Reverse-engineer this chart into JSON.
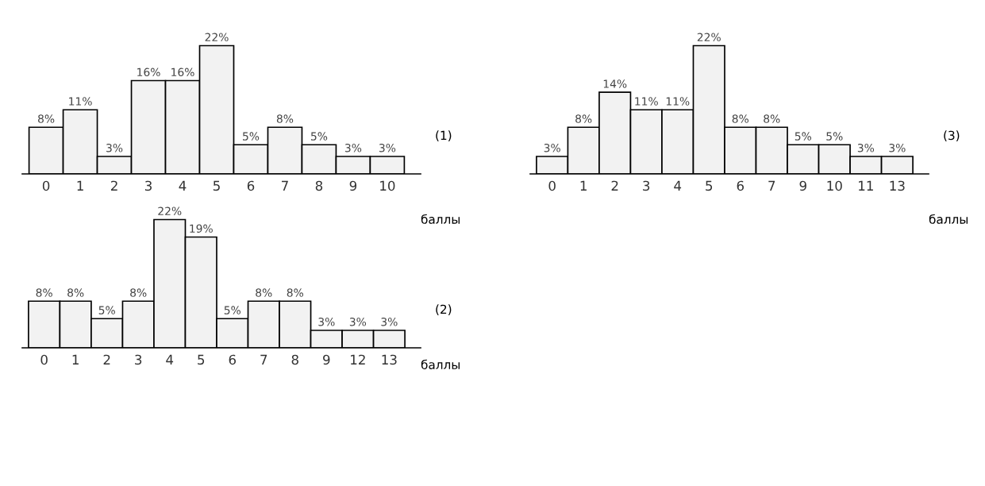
{
  "chart_data": [
    {
      "type": "bar",
      "annotations": [
        "(1)"
      ],
      "xlabel": "баллы",
      "categories": [
        "0",
        "1",
        "2",
        "3",
        "4",
        "5",
        "6",
        "7",
        "8",
        "9",
        "10"
      ],
      "values": [
        8,
        11,
        3,
        16,
        16,
        22,
        5,
        8,
        5,
        3,
        3
      ],
      "value_labels": [
        "8%",
        "11%",
        "3%",
        "16%",
        "16%",
        "22%",
        "5%",
        "8%",
        "5%",
        "3%",
        "3%"
      ],
      "color": "#f2f2f2"
    },
    {
      "type": "bar",
      "annotations": [
        "(3)"
      ],
      "xlabel": "баллы",
      "categories": [
        "0",
        "1",
        "2",
        "3",
        "4",
        "5",
        "6",
        "7",
        "9",
        "10",
        "11",
        "13"
      ],
      "values": [
        3,
        8,
        14,
        11,
        11,
        22,
        8,
        8,
        5,
        5,
        3,
        3
      ],
      "value_labels": [
        "3%",
        "8%",
        "14%",
        "11%",
        "11%",
        "22%",
        "8%",
        "8%",
        "5%",
        "5%",
        "3%",
        "3%"
      ],
      "color": "#f2f2f2"
    },
    {
      "type": "bar",
      "annotations": [
        "(2)"
      ],
      "xlabel": "баллы",
      "categories": [
        "0",
        "1",
        "2",
        "3",
        "4",
        "5",
        "6",
        "7",
        "8",
        "9",
        "12",
        "13"
      ],
      "values": [
        8,
        8,
        5,
        8,
        22,
        19,
        5,
        8,
        8,
        3,
        3,
        3
      ],
      "value_labels": [
        "8%",
        "8%",
        "5%",
        "8%",
        "22%",
        "19%",
        "5%",
        "8%",
        "8%",
        "3%",
        "3%",
        "3%"
      ],
      "color": "#f2f2f2"
    }
  ]
}
